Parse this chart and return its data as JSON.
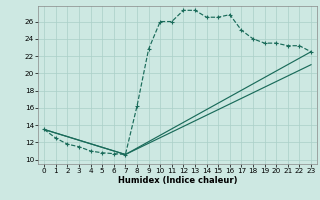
{
  "xlabel": "Humidex (Indice chaleur)",
  "bg_color": "#cde8e2",
  "grid_color": "#aacfc8",
  "line_color": "#1a6b5a",
  "xlim": [
    -0.5,
    23.5
  ],
  "ylim": [
    9.5,
    27.8
  ],
  "xticks": [
    0,
    1,
    2,
    3,
    4,
    5,
    6,
    7,
    8,
    9,
    10,
    11,
    12,
    13,
    14,
    15,
    16,
    17,
    18,
    19,
    20,
    21,
    22,
    23
  ],
  "yticks": [
    10,
    12,
    14,
    16,
    18,
    20,
    22,
    24,
    26
  ],
  "line1_x": [
    0,
    1,
    2,
    3,
    4,
    5,
    6,
    7,
    8,
    9,
    10,
    11,
    12,
    13,
    14,
    15,
    16,
    17,
    18,
    19,
    20,
    21,
    22,
    23
  ],
  "line1_y": [
    13.5,
    12.5,
    11.8,
    11.5,
    11.0,
    10.8,
    10.7,
    10.6,
    16.2,
    22.8,
    26.0,
    26.0,
    27.3,
    27.3,
    26.5,
    26.5,
    26.8,
    25.0,
    24.0,
    23.5,
    23.5,
    23.2,
    23.2,
    22.5
  ],
  "line2_x": [
    0,
    7,
    23
  ],
  "line2_y": [
    13.5,
    10.6,
    22.5
  ],
  "line3_x": [
    0,
    7,
    23
  ],
  "line3_y": [
    13.5,
    10.6,
    21.0
  ]
}
